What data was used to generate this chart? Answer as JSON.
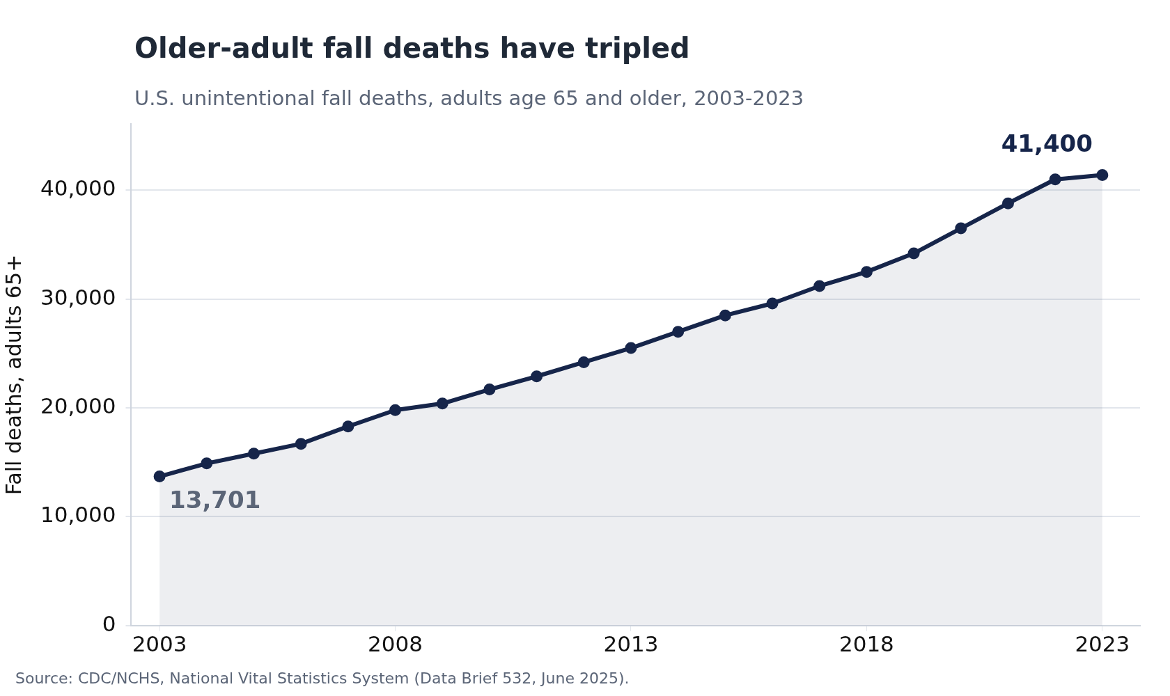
{
  "chart_data": {
    "type": "area",
    "title": "Older-adult fall deaths have tripled",
    "subtitle": "U.S. unintentional fall deaths, adults age 65 and older, 2003-2023",
    "ylabel": "Fall deaths, adults 65+",
    "x": [
      2003,
      2004,
      2005,
      2006,
      2007,
      2008,
      2009,
      2010,
      2011,
      2012,
      2013,
      2014,
      2015,
      2016,
      2017,
      2018,
      2019,
      2020,
      2021,
      2022,
      2023
    ],
    "series": [
      {
        "color": "#16254a",
        "values": [
          13701,
          14900,
          15800,
          16700,
          18300,
          19800,
          20400,
          21700,
          22900,
          24200,
          25500,
          27000,
          28500,
          29600,
          31200,
          32500,
          34200,
          36500,
          38800,
          41000,
          41400
        ]
      }
    ],
    "xlim": [
      2002.4,
      2023.8
    ],
    "xticks": [
      2003,
      2008,
      2013,
      2018,
      2023
    ],
    "ylim": [
      0,
      46100
    ],
    "yticks": [
      0,
      {
        "value": 10000,
        "label": "10,000"
      },
      {
        "value": 20000,
        "label": "20,000"
      },
      {
        "value": 30000,
        "label": "30,000"
      },
      {
        "value": 40000,
        "label": "40,000"
      }
    ],
    "grid": "y",
    "marker": "circle",
    "line_style": "solid",
    "legend": false,
    "annotations": [
      {
        "text": "41,400",
        "x": 2023,
        "y": 41400
      },
      {
        "text": "13,701",
        "x": 2003,
        "y": 13701
      },
      "Source: CDC/NCHS, National Vital Statistics System (Data Brief 532, June 2025)."
    ]
  }
}
